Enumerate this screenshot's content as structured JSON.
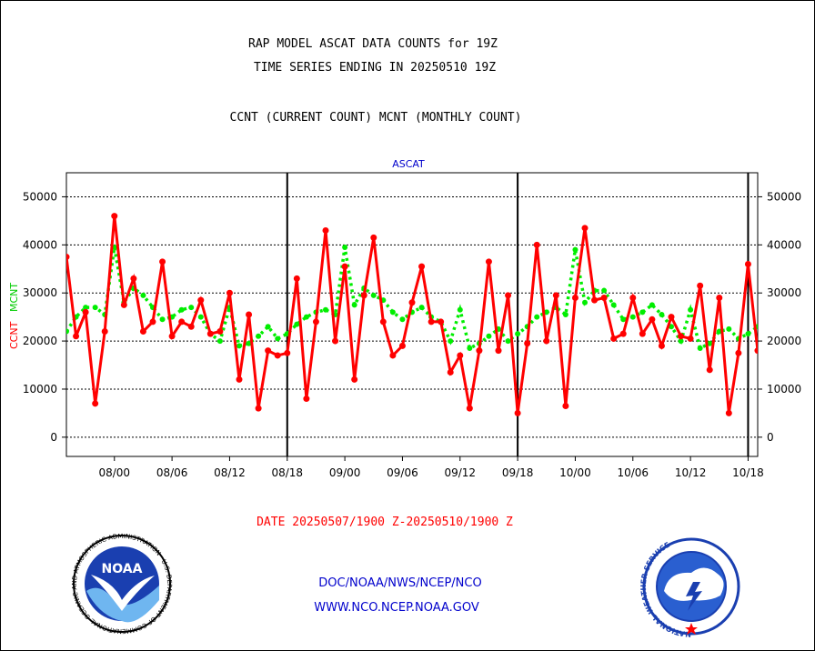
{
  "header": {
    "title_line1": "RAP MODEL ASCAT DATA COUNTS for 19Z",
    "title_line2": "TIME SERIES ENDING IN 20250510 19Z",
    "subtitle": "CCNT (CURRENT COUNT) MCNT (MONTHLY COUNT)"
  },
  "footer": {
    "date_range": "DATE 20250507/1900 Z-20250510/1900 Z",
    "org_line": "DOC/NOAA/NWS/NCEP/NCO",
    "url_line": "WWW.NCO.NCEP.NOAA.GOV"
  },
  "logos": {
    "noaa_text": "NOAA",
    "noaa_ring_text": "NATIONAL OCEANIC AND ATMOSPHERIC ADMINISTRATION · U.S. DEPARTMENT OF COMMERCE",
    "nws_ring_text": "NATIONAL WEATHER SERVICE"
  },
  "colors": {
    "ccnt": "#ff0000",
    "mcnt": "#00ee00",
    "panel_title": "#0000cc",
    "footer_blue": "#0000cc",
    "footer_red": "#ff0000"
  },
  "chart_data": {
    "type": "line",
    "title": "ASCAT",
    "ylabel_ccnt": "CCNT",
    "ylabel_mcnt": "MCNT",
    "ylim": [
      -4000,
      55000
    ],
    "y_ticks": [
      0,
      10000,
      20000,
      30000,
      40000,
      50000
    ],
    "y_tick_labels": [
      "0",
      "10000",
      "20000",
      "30000",
      "40000",
      "50000"
    ],
    "x_tick_labels": [
      "08/00",
      "08/06",
      "08/12",
      "08/18",
      "09/00",
      "09/06",
      "09/12",
      "09/18",
      "10/00",
      "10/06",
      "10/12",
      "10/18"
    ],
    "x_tick_hours": [
      5,
      11,
      17,
      23,
      29,
      35,
      41,
      47,
      53,
      59,
      65,
      71
    ],
    "x_start": "20250507/1900",
    "day_boundary_hours": [
      23,
      47,
      71
    ],
    "grid": true,
    "series": [
      {
        "name": "CCNT",
        "style": "solid",
        "values": [
          37500,
          21000,
          26000,
          7000,
          22000,
          46000,
          27500,
          33000,
          22000,
          24000,
          36500,
          21000,
          24000,
          23000,
          28500,
          21500,
          22000,
          30000,
          12000,
          25500,
          6000,
          18000,
          17000,
          17500,
          33000,
          8000,
          24000,
          43000,
          20000,
          35500,
          12000,
          29500,
          41500,
          24000,
          17000,
          19000,
          28000,
          35500,
          24000,
          24000,
          13500,
          17000,
          6000,
          18000,
          36500,
          18000,
          29500,
          5000,
          19500,
          40000,
          20000,
          29500,
          6500,
          29000,
          43500,
          28500,
          29000,
          20500,
          21500,
          29000,
          21500,
          24500,
          19000,
          25000,
          21000,
          20500,
          31500,
          14000,
          29000,
          5000,
          17500,
          36000,
          18000
        ]
      },
      {
        "name": "MCNT",
        "style": "dotted",
        "values": [
          22000,
          25000,
          27000,
          27000,
          25500,
          39500,
          28000,
          31000,
          29500,
          27000,
          24500,
          25000,
          26500,
          27000,
          25000,
          21500,
          20000,
          27000,
          19000,
          19500,
          21000,
          23000,
          20500,
          21500,
          23500,
          25000,
          26000,
          26500,
          25500,
          39500,
          27500,
          31000,
          29500,
          28500,
          26000,
          24500,
          26000,
          27000,
          25000,
          24000,
          20000,
          26500,
          18500,
          19500,
          21000,
          22500,
          20000,
          21500,
          23000,
          25000,
          26000,
          27000,
          25500,
          39000,
          28000,
          30500,
          30500,
          27500,
          24500,
          25000,
          26000,
          27500,
          25500,
          23000,
          20000,
          26500,
          18500,
          19500,
          22000,
          22500,
          20500,
          21500,
          23000
        ]
      }
    ]
  }
}
